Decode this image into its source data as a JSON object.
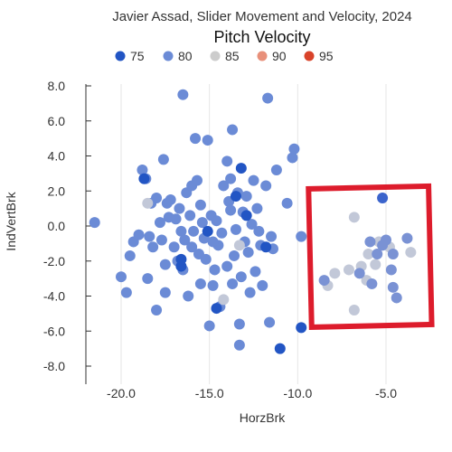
{
  "chart_data": {
    "type": "scatter",
    "title": "Javier Assad, Slider Movement and Velocity, 2024",
    "legend": {
      "title": "Pitch Velocity",
      "placement": "top",
      "entries": [
        {
          "label": "75",
          "color": "#2255c4"
        },
        {
          "label": "80",
          "color": "#6b8bd6"
        },
        {
          "label": "85",
          "color": "#cccccc"
        },
        {
          "label": "90",
          "color": "#e8907a"
        },
        {
          "label": "95",
          "color": "#d9432a"
        }
      ]
    },
    "xlabel": "HorzBrk",
    "ylabel": "IndVertBrk",
    "xlim": [
      -22,
      -2
    ],
    "ylim": [
      -8.5,
      8
    ],
    "xticks": [
      -20,
      -15,
      -10,
      -5
    ],
    "xtick_labels": [
      "-20.0",
      "-15.0",
      "-10.0",
      "-5.0"
    ],
    "yticks": [
      8,
      6,
      4,
      2,
      0,
      -2,
      -4,
      -6,
      -8
    ],
    "ytick_labels": [
      "8.0",
      "6.0",
      "4.0",
      "2.0",
      "0.0",
      "-2.0",
      "-4.0",
      "-6.0",
      "-8.0"
    ],
    "grid": "vertical",
    "highlight_box": {
      "color": "#dd1c2c",
      "x_range": [
        -9.3,
        -2.5
      ],
      "y_range": [
        -5.7,
        2.2
      ]
    },
    "series": [
      {
        "color": "#6b8bd6",
        "points": [
          [
            -21.5,
            0.2
          ],
          [
            -20.0,
            -2.9
          ],
          [
            -19.7,
            -3.8
          ],
          [
            -19.5,
            -1.7
          ],
          [
            -19.3,
            -0.9
          ],
          [
            -19.0,
            -0.5
          ],
          [
            -18.8,
            3.2
          ],
          [
            -18.6,
            2.7
          ],
          [
            -18.5,
            -3.0
          ],
          [
            -18.4,
            -0.6
          ],
          [
            -18.3,
            1.3
          ],
          [
            -18.2,
            -1.2
          ],
          [
            -18.0,
            1.6
          ],
          [
            -18.0,
            -4.8
          ],
          [
            -17.8,
            0.2
          ],
          [
            -17.7,
            -0.8
          ],
          [
            -17.6,
            3.8
          ],
          [
            -17.5,
            -2.2
          ],
          [
            -17.5,
            -3.8
          ],
          [
            -17.4,
            1.3
          ],
          [
            -17.3,
            0.5
          ],
          [
            -17.2,
            1.5
          ],
          [
            -17.0,
            -1.2
          ],
          [
            -16.9,
            0.4
          ],
          [
            -16.8,
            -2.0
          ],
          [
            -16.7,
            1.0
          ],
          [
            -16.6,
            -0.3
          ],
          [
            -16.5,
            -2.5
          ],
          [
            -16.5,
            7.5
          ],
          [
            -16.4,
            -0.8
          ],
          [
            -16.3,
            1.9
          ],
          [
            -16.2,
            -4.0
          ],
          [
            -16.1,
            0.6
          ],
          [
            -16.0,
            2.3
          ],
          [
            -16.0,
            -1.2
          ],
          [
            -15.9,
            -0.3
          ],
          [
            -15.8,
            5.0
          ],
          [
            -15.7,
            2.6
          ],
          [
            -15.6,
            -1.6
          ],
          [
            -15.5,
            1.2
          ],
          [
            -15.5,
            -3.3
          ],
          [
            -15.4,
            0.2
          ],
          [
            -15.3,
            -0.7
          ],
          [
            -15.2,
            -1.9
          ],
          [
            -15.1,
            4.9
          ],
          [
            -15.0,
            -5.7
          ],
          [
            -14.9,
            0.6
          ],
          [
            -14.8,
            -3.4
          ],
          [
            -14.7,
            -2.5
          ],
          [
            -14.6,
            0.3
          ],
          [
            -14.5,
            -1.1
          ],
          [
            -14.4,
            -4.6
          ],
          [
            -14.3,
            -0.4
          ],
          [
            -14.2,
            2.3
          ],
          [
            -14.0,
            3.7
          ],
          [
            -14.0,
            -2.3
          ],
          [
            -13.9,
            1.4
          ],
          [
            -13.8,
            0.9
          ],
          [
            -13.7,
            5.5
          ],
          [
            -13.7,
            -3.3
          ],
          [
            -13.6,
            -1.7
          ],
          [
            -13.5,
            -0.2
          ],
          [
            -13.4,
            1.9
          ],
          [
            -13.3,
            -5.6
          ],
          [
            -13.3,
            -6.8
          ],
          [
            -13.2,
            -2.9
          ],
          [
            -13.1,
            0.8
          ],
          [
            -13.0,
            -0.9
          ],
          [
            -12.9,
            1.7
          ],
          [
            -12.8,
            -1.5
          ],
          [
            -12.7,
            -3.8
          ],
          [
            -12.6,
            0.1
          ],
          [
            -12.5,
            2.6
          ],
          [
            -12.4,
            -2.6
          ],
          [
            -12.3,
            1.0
          ],
          [
            -12.2,
            -0.3
          ],
          [
            -12.1,
            -1.1
          ],
          [
            -12.0,
            -3.4
          ],
          [
            -11.8,
            2.3
          ],
          [
            -11.7,
            7.3
          ],
          [
            -11.6,
            -5.5
          ],
          [
            -11.5,
            -0.6
          ],
          [
            -11.4,
            -1.3
          ],
          [
            -11.2,
            3.2
          ],
          [
            -10.6,
            1.3
          ],
          [
            -10.3,
            3.9
          ],
          [
            -10.2,
            4.4
          ],
          [
            -9.8,
            -0.6
          ],
          [
            -13.8,
            2.7
          ],
          [
            -14.8,
            -0.9
          ]
        ]
      },
      {
        "color": "#2255c4",
        "points": [
          [
            -18.7,
            2.7
          ],
          [
            -16.6,
            -2.3
          ],
          [
            -15.1,
            -0.3
          ],
          [
            -13.5,
            1.7
          ],
          [
            -13.2,
            3.3
          ],
          [
            -12.9,
            0.6
          ],
          [
            -11.8,
            -1.2
          ],
          [
            -11.0,
            -7.0
          ],
          [
            -9.8,
            -5.8
          ],
          [
            -16.6,
            -1.9
          ],
          [
            -14.6,
            -4.7
          ]
        ]
      },
      {
        "color": "#c2c8d8",
        "points": [
          [
            -18.5,
            1.3
          ],
          [
            -14.2,
            -4.2
          ],
          [
            -13.3,
            -1.1
          ],
          [
            -7.9,
            -2.7
          ],
          [
            -7.1,
            -2.5
          ],
          [
            -6.8,
            0.5
          ],
          [
            -6.4,
            -2.3
          ],
          [
            -6.0,
            -1.6
          ],
          [
            -5.4,
            -0.9
          ],
          [
            -4.8,
            -1.2
          ],
          [
            -3.6,
            -1.5
          ],
          [
            -5.6,
            -2.2
          ],
          [
            -6.1,
            -3.1
          ],
          [
            -8.3,
            -3.4
          ],
          [
            -6.8,
            -4.8
          ]
        ]
      },
      {
        "color": "#7a92d4",
        "points": [
          [
            -8.5,
            -3.1
          ],
          [
            -5.9,
            -0.9
          ],
          [
            -5.8,
            -3.3
          ],
          [
            -5.5,
            -1.6
          ],
          [
            -5.2,
            -1.1
          ],
          [
            -5.0,
            -0.8
          ],
          [
            -4.7,
            -2.5
          ],
          [
            -4.6,
            -1.6
          ],
          [
            -3.8,
            -0.7
          ],
          [
            -6.5,
            -2.7
          ],
          [
            -4.4,
            -4.1
          ],
          [
            -4.6,
            -3.5
          ]
        ]
      },
      {
        "color": "#3b64cc",
        "points": [
          [
            -5.2,
            1.6
          ]
        ]
      }
    ]
  }
}
